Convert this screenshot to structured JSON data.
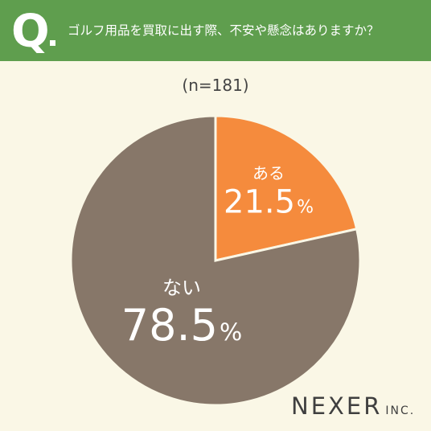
{
  "header": {
    "q_mark": "Q",
    "question": "ゴルフ用品を買取に出す際、不安や懸念はありますか？"
  },
  "sample_size": "(n=181)",
  "chart_data": {
    "type": "pie",
    "title": "",
    "slices": [
      {
        "label": "ある",
        "value": 21.5,
        "color": "#F58B3D"
      },
      {
        "label": "ない",
        "value": 78.5,
        "color": "#877769"
      }
    ]
  },
  "labels": [
    {
      "name": "ある",
      "value": "21.5",
      "unit": "%"
    },
    {
      "name": "ない",
      "value": "78.5",
      "unit": "%"
    }
  ],
  "logo": {
    "main": "NEXER",
    "suffix": "INC."
  }
}
